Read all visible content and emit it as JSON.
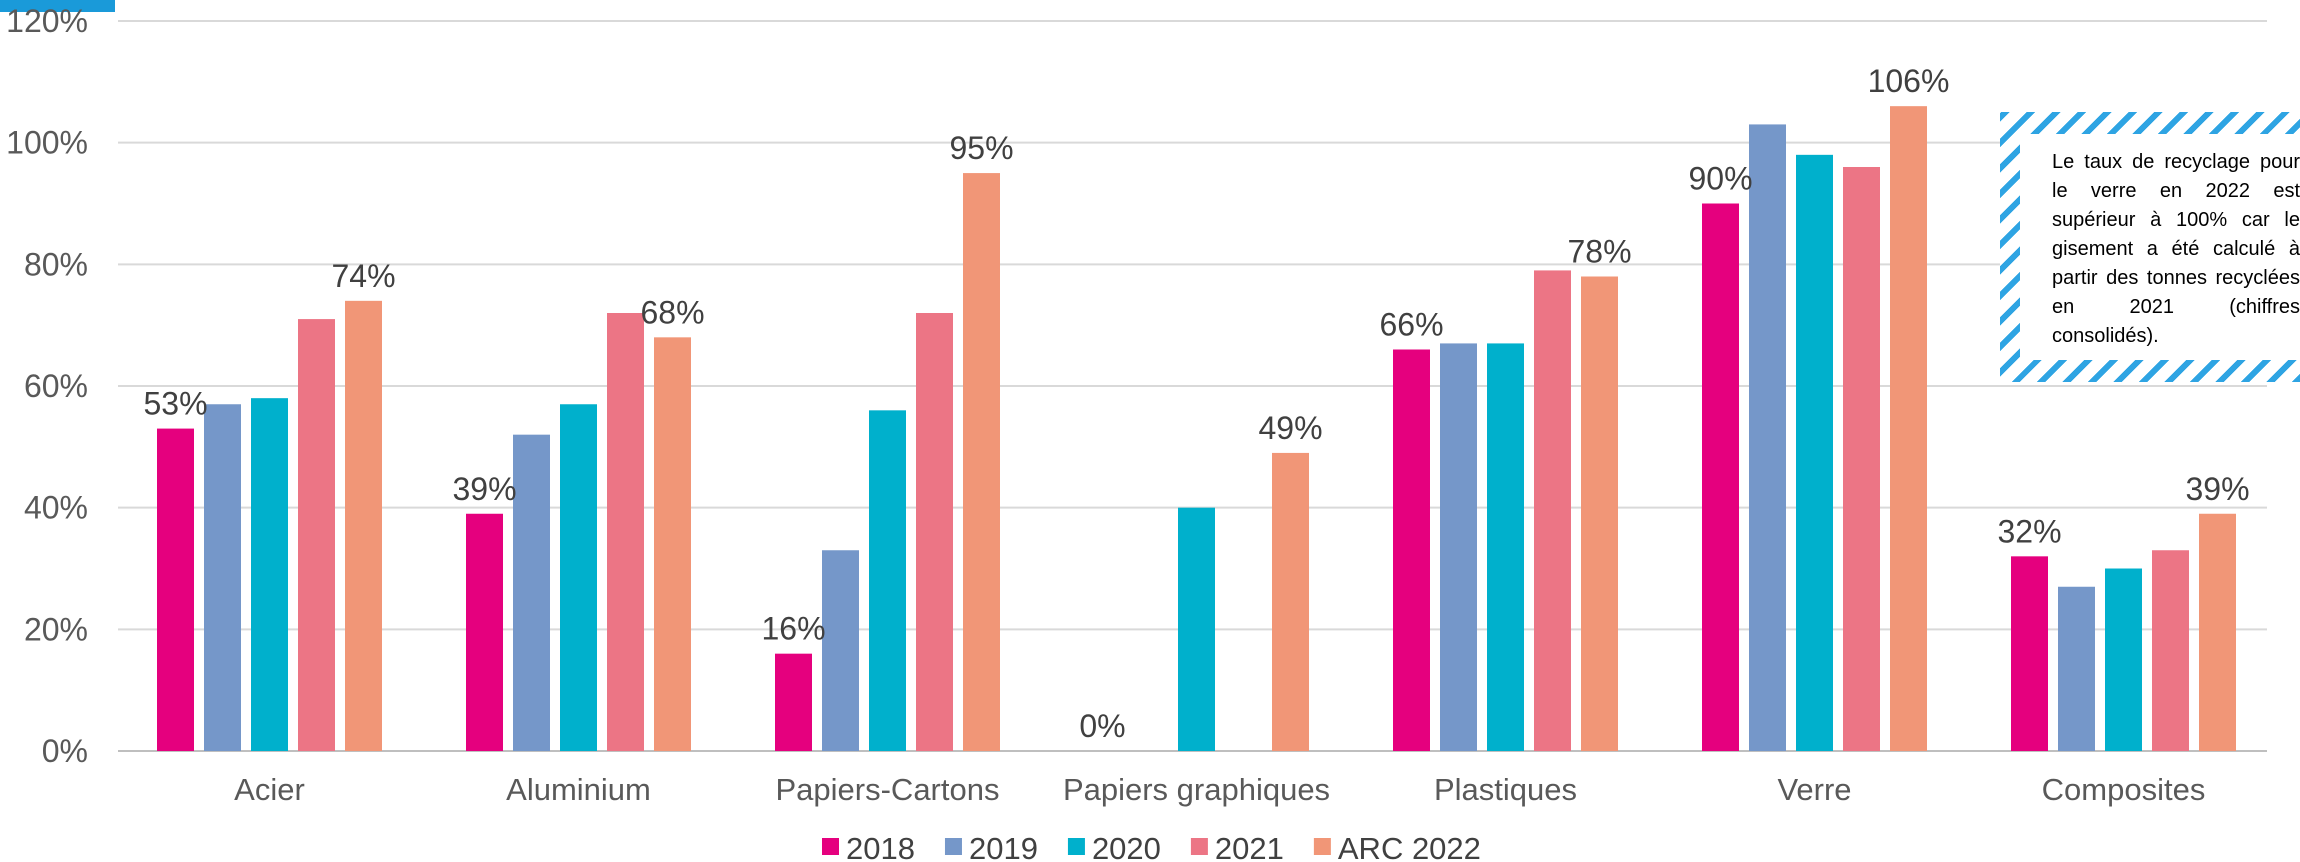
{
  "chart_data": {
    "type": "bar",
    "categories": [
      "Acier",
      "Aluminium",
      "Papiers-Cartons",
      "Papiers graphiques",
      "Plastiques",
      "Verre",
      "Composites"
    ],
    "series": [
      {
        "name": "2018",
        "color": "#e5007e",
        "values": [
          53,
          39,
          16,
          0,
          66,
          90,
          32
        ]
      },
      {
        "name": "2019",
        "color": "#7597c9",
        "values": [
          57,
          52,
          33,
          null,
          67,
          103,
          27
        ]
      },
      {
        "name": "2020",
        "color": "#00b0cc",
        "values": [
          58,
          57,
          56,
          40,
          67,
          98,
          30
        ]
      },
      {
        "name": "2021",
        "color": "#ec7585",
        "values": [
          71,
          72,
          72,
          null,
          79,
          96,
          33
        ]
      },
      {
        "name": "ARC 2022",
        "color": "#f19677",
        "values": [
          74,
          68,
          95,
          49,
          78,
          106,
          39
        ]
      }
    ],
    "data_labels": {
      "2018": [
        "53%",
        "39%",
        "16%",
        "0%",
        "66%",
        "90%",
        "32%"
      ],
      "ARC 2022": [
        "74%",
        "68%",
        "95%",
        "49%",
        "78%",
        "106%",
        "39%"
      ]
    },
    "y_ticks": [
      "0%",
      "20%",
      "40%",
      "60%",
      "80%",
      "100%",
      "120%"
    ],
    "ylim": [
      0,
      120
    ],
    "grid": true,
    "legend_position": "bottom",
    "annotation": "Le taux de recyclage pour le verre en 2022 est supérieur à 100% car le gisement a été calculé à partir des tonnes recyclées en 2021 (chiffres consolidés).",
    "colors": {
      "accent": "#1a9ad9",
      "gridline": "#d9d9d9",
      "axis": "#bfbfbf"
    }
  }
}
